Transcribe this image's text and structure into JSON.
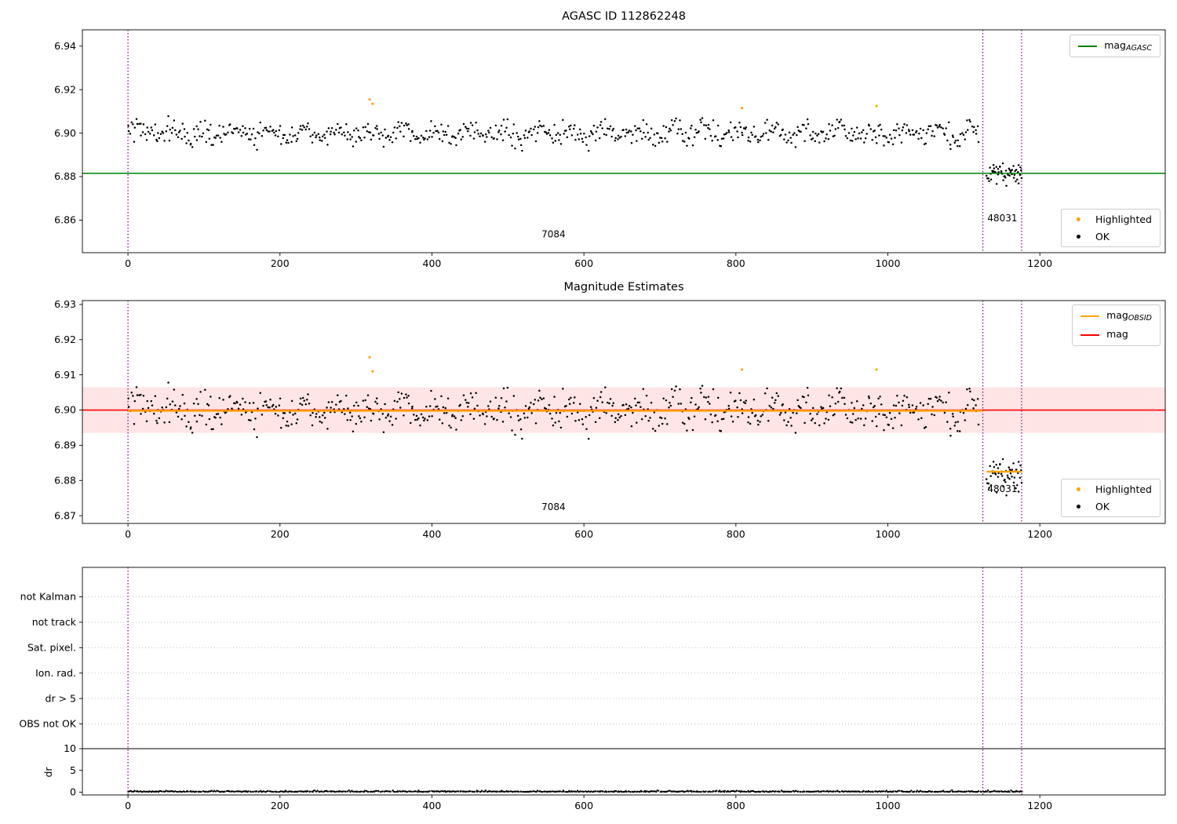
{
  "figure": {
    "title": "AGASC ID 112862248"
  },
  "colors": {
    "agasc_line": "#008000",
    "mag_line": "#ff0000",
    "obsid_line": "#ffa500",
    "highlighted": "#ffa500",
    "ok": "#000000",
    "vline": "#800080",
    "band": "rgba(255,0,0,0.10)",
    "grid": "#bbbbbb"
  },
  "chart_data": [
    {
      "id": "panel-agasc",
      "type": "scatter",
      "title": "AGASC ID 112862248",
      "xlim": [
        -60,
        1365
      ],
      "ylim": [
        6.845,
        6.9475
      ],
      "yticks": [
        6.86,
        6.88,
        6.9,
        6.92,
        6.94
      ],
      "xticks": [
        0,
        200,
        400,
        600,
        800,
        1000,
        1200
      ],
      "hlines": [
        {
          "y": 6.8815,
          "color": "#008000",
          "width": 1.6,
          "name": "mag-agasc-line"
        }
      ],
      "vlines": [
        0,
        1125,
        1176
      ],
      "series": {
        "main": {
          "x_start": 0,
          "x_end": 1120,
          "n": 700,
          "mean": 6.9,
          "noise": 0.0026,
          "wiggle_amp": 0.0022,
          "wiggle_period": 44
        },
        "tail": {
          "x_start": 1130,
          "x_end": 1176,
          "n": 55,
          "mean": 6.8815,
          "noise": 0.0026
        }
      },
      "highlighted": [
        [
          318,
          6.9155
        ],
        [
          322,
          6.9135
        ],
        [
          808,
          6.9115
        ],
        [
          985,
          6.9125
        ]
      ],
      "annotations": [
        {
          "text": "7084",
          "x": 560,
          "y": 6.852,
          "anchor": "middle"
        },
        {
          "text": "48031",
          "x": 1131,
          "y": 6.8595,
          "anchor": "start"
        }
      ],
      "legend_lines": [
        {
          "prefix": "mag",
          "sub": "AGASC"
        }
      ],
      "legend_markers": [
        {
          "label": "Highlighted"
        },
        {
          "label": "OK"
        }
      ]
    },
    {
      "id": "panel-magnitude-estimates",
      "type": "scatter",
      "title": "Magnitude Estimates",
      "xlim": [
        -60,
        1365
      ],
      "ylim": [
        6.8678,
        6.9311
      ],
      "yticks": [
        6.87,
        6.88,
        6.89,
        6.9,
        6.91,
        6.92,
        6.93
      ],
      "xticks": [
        0,
        200,
        400,
        600,
        800,
        1000,
        1200
      ],
      "band": {
        "lo": 6.8935,
        "hi": 6.9065
      },
      "hlines": [
        {
          "y": 6.9,
          "color": "#ff0000",
          "width": 1.6,
          "name": "mag-line"
        },
        {
          "y": 6.8998,
          "x0": 0,
          "x1": 1125,
          "color": "#ffa500",
          "width": 2.4,
          "name": "mag-obsid-line-7084"
        },
        {
          "y": 6.8825,
          "x0": 1130,
          "x1": 1176,
          "color": "#ffa500",
          "width": 2.4,
          "name": "mag-obsid-line-48031"
        }
      ],
      "vlines": [
        0,
        1125,
        1176
      ],
      "series": {
        "main": {
          "x_start": 0,
          "x_end": 1120,
          "n": 700,
          "mean": 6.9,
          "noise": 0.0026,
          "wiggle_amp": 0.0022,
          "wiggle_period": 44
        },
        "tail": {
          "x_start": 1130,
          "x_end": 1176,
          "n": 55,
          "mean": 6.8815,
          "noise": 0.0026
        }
      },
      "highlighted": [
        [
          318,
          6.915
        ],
        [
          322,
          6.911
        ],
        [
          808,
          6.9115
        ],
        [
          985,
          6.9115
        ]
      ],
      "annotations": [
        {
          "text": "7084",
          "x": 560,
          "y": 6.8716,
          "anchor": "middle"
        },
        {
          "text": "48031",
          "x": 1131,
          "y": 6.8767,
          "anchor": "start"
        }
      ],
      "legend_lines": [
        {
          "prefix": "mag",
          "sub": "OBSID"
        },
        {
          "prefix": "mag",
          "sub": ""
        }
      ],
      "legend_markers": [
        {
          "label": "Highlighted"
        },
        {
          "label": "OK"
        }
      ]
    },
    {
      "id": "panel-flags",
      "type": "flags",
      "xlim": [
        -60,
        1365
      ],
      "xticks": [
        0,
        200,
        400,
        600,
        800,
        1000,
        1200
      ],
      "categories": [
        "not Kalman",
        "not track",
        "Sat. pixel.",
        "Ion. rad.",
        "dr > 5",
        "OBS not OK"
      ],
      "ylabel": "dr",
      "dr_ticks": [
        0,
        5,
        10
      ],
      "vlines": [
        0,
        1125,
        1176
      ],
      "dr_series": {
        "x_start": 0,
        "x_end": 1176,
        "n": 755,
        "base": 0.05,
        "noise": 0.13,
        "max": 0.55
      }
    }
  ]
}
